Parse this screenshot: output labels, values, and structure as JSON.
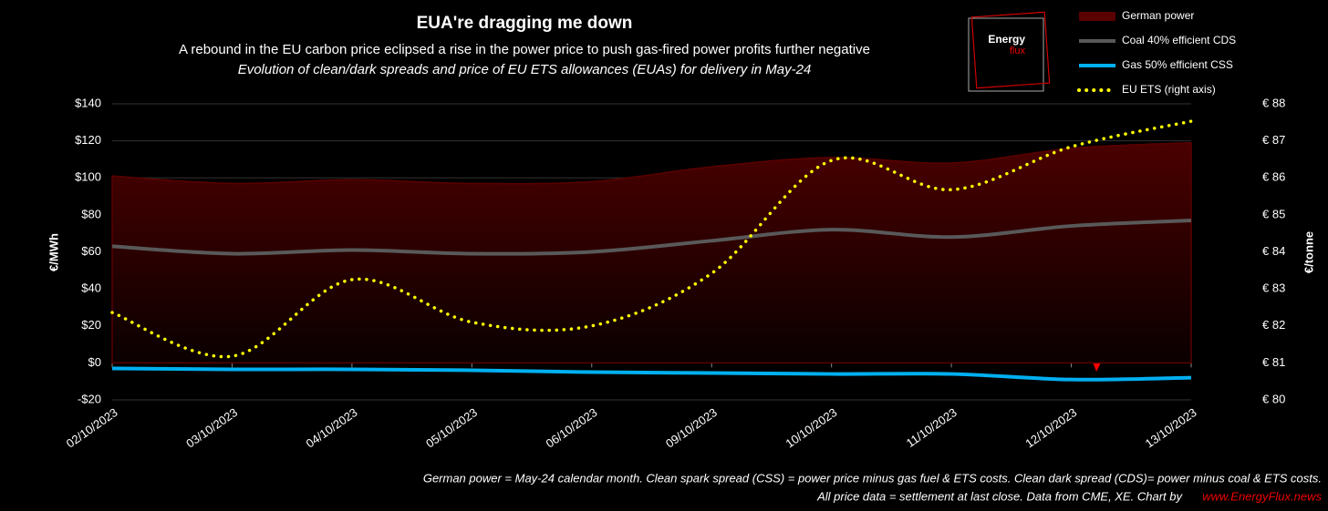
{
  "chart_data": {
    "type": "line",
    "title": "EUA're dragging me down",
    "subtitle": "A rebound in the EU carbon price eclipsed a rise in the power price to push gas-fired power profits further negative",
    "subtitle2": "Evolution of clean/dark spreads and price of EU ETS allowances (EUAs) for delivery in May-24",
    "y_label": "€/MWh",
    "y2_label": "€/tonne",
    "logo": [
      "Energy",
      "flux"
    ],
    "footnotes": [
      "German power = May-24 calendar month. Clean spark spread (CSS) = power price minus gas fuel & ETS costs. Clean dark spread (CDS)= power minus coal & ETS costs.",
      "All price data = settlement at last close. Data from CME, XE. Chart by"
    ],
    "source": "www.EnergyFlux.news",
    "categories": [
      "02/10/2023",
      "03/10/2023",
      "04/10/2023",
      "05/10/2023",
      "06/10/2023",
      "09/10/2023",
      "10/10/2023",
      "11/10/2023",
      "12/10/2023",
      "13/10/2023"
    ],
    "series": [
      {
        "name": "German power",
        "color": "#5a0000",
        "style": "area",
        "values": [
          101,
          97,
          99,
          97,
          98,
          106,
          111,
          108,
          116,
          119
        ]
      },
      {
        "name": "Coal 40% efficient CDS",
        "color": "#595959",
        "style": "line",
        "values": [
          63,
          59,
          61,
          59,
          60,
          66,
          72,
          68,
          74,
          77
        ]
      },
      {
        "name": "Gas 50% efficient CSS",
        "color": "#00b0f0",
        "style": "line",
        "values": [
          -3,
          -3.5,
          -3.5,
          -4,
          -5,
          -5.5,
          -6,
          -6,
          -9,
          -8
        ]
      },
      {
        "name": "EU ETS (right axis)",
        "color": "#ffff00",
        "style": "dotted",
        "axis": "y2",
        "values": [
          82.36,
          81.18,
          83.25,
          82.1,
          82.0,
          83.42,
          86.47,
          85.68,
          86.84,
          87.53
        ]
      }
    ],
    "ylim": [
      -20,
      140
    ],
    "yticks": [
      {
        "value": -20,
        "label": "-$20"
      },
      {
        "value": 0,
        "label": "$0"
      },
      {
        "value": 20,
        "label": "$20"
      },
      {
        "value": 40,
        "label": "$40"
      },
      {
        "value": 60,
        "label": "$60"
      },
      {
        "value": 80,
        "label": "$80"
      },
      {
        "value": 100,
        "label": "$100"
      },
      {
        "value": 120,
        "label": "$120"
      },
      {
        "value": 140,
        "label": "$140"
      }
    ],
    "y2lim": [
      80,
      88
    ],
    "y2ticks": [
      {
        "value": 80,
        "label": "€ 80"
      },
      {
        "value": 81,
        "label": "€ 81"
      },
      {
        "value": 82,
        "label": "€ 82"
      },
      {
        "value": 83,
        "label": "€ 83"
      },
      {
        "value": 84,
        "label": "€ 84"
      },
      {
        "value": 85,
        "label": "€ 85"
      },
      {
        "value": 86,
        "label": "€ 86"
      },
      {
        "value": 87,
        "label": "€ 87"
      },
      {
        "value": 88,
        "label": "€ 88"
      }
    ],
    "grid": true,
    "legend": "upper right"
  }
}
